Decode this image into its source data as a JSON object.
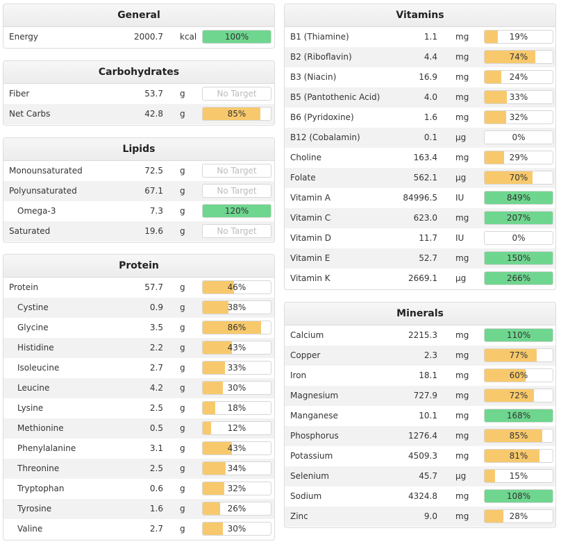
{
  "colors": {
    "orange": "#f8c96c",
    "green": "#6fd68f",
    "empty": "#ffffff"
  },
  "general": {
    "title": "General",
    "rows": [
      {
        "label": "Energy",
        "amount": "2000.7",
        "unit": "kcal",
        "pct": "100%",
        "fraction": 1.0,
        "status": "green"
      }
    ]
  },
  "carbohydrates": {
    "title": "Carbohydrates",
    "rows": [
      {
        "label": "Fiber",
        "amount": "53.7",
        "unit": "g",
        "pct": "No Target",
        "fraction": 0,
        "status": "none"
      },
      {
        "label": "Net Carbs",
        "amount": "42.8",
        "unit": "g",
        "pct": "85%",
        "fraction": 0.85,
        "status": "orange"
      }
    ]
  },
  "lipids": {
    "title": "Lipids",
    "rows": [
      {
        "label": "Monounsaturated",
        "amount": "72.5",
        "unit": "g",
        "pct": "No Target",
        "fraction": 0,
        "status": "none"
      },
      {
        "label": "Polyunsaturated",
        "amount": "67.1",
        "unit": "g",
        "pct": "No Target",
        "fraction": 0,
        "status": "none"
      },
      {
        "label": "Omega-3",
        "amount": "7.3",
        "unit": "g",
        "pct": "120%",
        "fraction": 1.0,
        "status": "green",
        "indent": true
      },
      {
        "label": "Saturated",
        "amount": "19.6",
        "unit": "g",
        "pct": "No Target",
        "fraction": 0,
        "status": "none"
      }
    ]
  },
  "protein": {
    "title": "Protein",
    "rows": [
      {
        "label": "Protein",
        "amount": "57.7",
        "unit": "g",
        "pct": "46%",
        "fraction": 0.46,
        "status": "orange"
      },
      {
        "label": "Cystine",
        "amount": "0.9",
        "unit": "g",
        "pct": "38%",
        "fraction": 0.38,
        "status": "orange",
        "indent": true
      },
      {
        "label": "Glycine",
        "amount": "3.5",
        "unit": "g",
        "pct": "86%",
        "fraction": 0.86,
        "status": "orange",
        "indent": true
      },
      {
        "label": "Histidine",
        "amount": "2.2",
        "unit": "g",
        "pct": "43%",
        "fraction": 0.43,
        "status": "orange",
        "indent": true
      },
      {
        "label": "Isoleucine",
        "amount": "2.7",
        "unit": "g",
        "pct": "33%",
        "fraction": 0.33,
        "status": "orange",
        "indent": true
      },
      {
        "label": "Leucine",
        "amount": "4.2",
        "unit": "g",
        "pct": "30%",
        "fraction": 0.3,
        "status": "orange",
        "indent": true
      },
      {
        "label": "Lysine",
        "amount": "2.5",
        "unit": "g",
        "pct": "18%",
        "fraction": 0.18,
        "status": "orange",
        "indent": true
      },
      {
        "label": "Methionine",
        "amount": "0.5",
        "unit": "g",
        "pct": "12%",
        "fraction": 0.12,
        "status": "orange",
        "indent": true
      },
      {
        "label": "Phenylalanine",
        "amount": "3.1",
        "unit": "g",
        "pct": "43%",
        "fraction": 0.43,
        "status": "orange",
        "indent": true
      },
      {
        "label": "Threonine",
        "amount": "2.5",
        "unit": "g",
        "pct": "34%",
        "fraction": 0.34,
        "status": "orange",
        "indent": true
      },
      {
        "label": "Tryptophan",
        "amount": "0.6",
        "unit": "g",
        "pct": "32%",
        "fraction": 0.32,
        "status": "orange",
        "indent": true
      },
      {
        "label": "Tyrosine",
        "amount": "1.6",
        "unit": "g",
        "pct": "26%",
        "fraction": 0.26,
        "status": "orange",
        "indent": true
      },
      {
        "label": "Valine",
        "amount": "2.7",
        "unit": "g",
        "pct": "30%",
        "fraction": 0.3,
        "status": "orange",
        "indent": true
      }
    ]
  },
  "vitamins": {
    "title": "Vitamins",
    "rows": [
      {
        "label": "B1 (Thiamine)",
        "amount": "1.1",
        "unit": "mg",
        "pct": "19%",
        "fraction": 0.19,
        "status": "orange"
      },
      {
        "label": "B2 (Riboflavin)",
        "amount": "4.4",
        "unit": "mg",
        "pct": "74%",
        "fraction": 0.74,
        "status": "orange"
      },
      {
        "label": "B3 (Niacin)",
        "amount": "16.9",
        "unit": "mg",
        "pct": "24%",
        "fraction": 0.24,
        "status": "orange"
      },
      {
        "label": "B5 (Pantothenic Acid)",
        "amount": "4.0",
        "unit": "mg",
        "pct": "33%",
        "fraction": 0.33,
        "status": "orange"
      },
      {
        "label": "B6 (Pyridoxine)",
        "amount": "1.6",
        "unit": "mg",
        "pct": "32%",
        "fraction": 0.32,
        "status": "orange"
      },
      {
        "label": "B12 (Cobalamin)",
        "amount": "0.1",
        "unit": "µg",
        "pct": "0%",
        "fraction": 0,
        "status": "orange"
      },
      {
        "label": "Choline",
        "amount": "163.4",
        "unit": "mg",
        "pct": "29%",
        "fraction": 0.29,
        "status": "orange"
      },
      {
        "label": "Folate",
        "amount": "562.1",
        "unit": "µg",
        "pct": "70%",
        "fraction": 0.7,
        "status": "orange"
      },
      {
        "label": "Vitamin A",
        "amount": "84996.5",
        "unit": "IU",
        "pct": "849%",
        "fraction": 1.0,
        "status": "green"
      },
      {
        "label": "Vitamin C",
        "amount": "623.0",
        "unit": "mg",
        "pct": "207%",
        "fraction": 1.0,
        "status": "green"
      },
      {
        "label": "Vitamin D",
        "amount": "11.7",
        "unit": "IU",
        "pct": "0%",
        "fraction": 0,
        "status": "orange"
      },
      {
        "label": "Vitamin E",
        "amount": "52.7",
        "unit": "mg",
        "pct": "150%",
        "fraction": 1.0,
        "status": "green"
      },
      {
        "label": "Vitamin K",
        "amount": "2669.1",
        "unit": "µg",
        "pct": "266%",
        "fraction": 1.0,
        "status": "green"
      }
    ]
  },
  "minerals": {
    "title": "Minerals",
    "rows": [
      {
        "label": "Calcium",
        "amount": "2215.3",
        "unit": "mg",
        "pct": "110%",
        "fraction": 1.0,
        "status": "green"
      },
      {
        "label": "Copper",
        "amount": "2.3",
        "unit": "mg",
        "pct": "77%",
        "fraction": 0.77,
        "status": "orange"
      },
      {
        "label": "Iron",
        "amount": "18.1",
        "unit": "mg",
        "pct": "60%",
        "fraction": 0.6,
        "status": "orange"
      },
      {
        "label": "Magnesium",
        "amount": "727.9",
        "unit": "mg",
        "pct": "72%",
        "fraction": 0.72,
        "status": "orange"
      },
      {
        "label": "Manganese",
        "amount": "10.1",
        "unit": "mg",
        "pct": "168%",
        "fraction": 1.0,
        "status": "green"
      },
      {
        "label": "Phosphorus",
        "amount": "1276.4",
        "unit": "mg",
        "pct": "85%",
        "fraction": 0.85,
        "status": "orange"
      },
      {
        "label": "Potassium",
        "amount": "4509.3",
        "unit": "mg",
        "pct": "81%",
        "fraction": 0.81,
        "status": "orange"
      },
      {
        "label": "Selenium",
        "amount": "45.7",
        "unit": "µg",
        "pct": "15%",
        "fraction": 0.15,
        "status": "orange"
      },
      {
        "label": "Sodium",
        "amount": "4324.8",
        "unit": "mg",
        "pct": "108%",
        "fraction": 1.0,
        "status": "green"
      },
      {
        "label": "Zinc",
        "amount": "9.0",
        "unit": "mg",
        "pct": "28%",
        "fraction": 0.28,
        "status": "orange"
      }
    ]
  }
}
